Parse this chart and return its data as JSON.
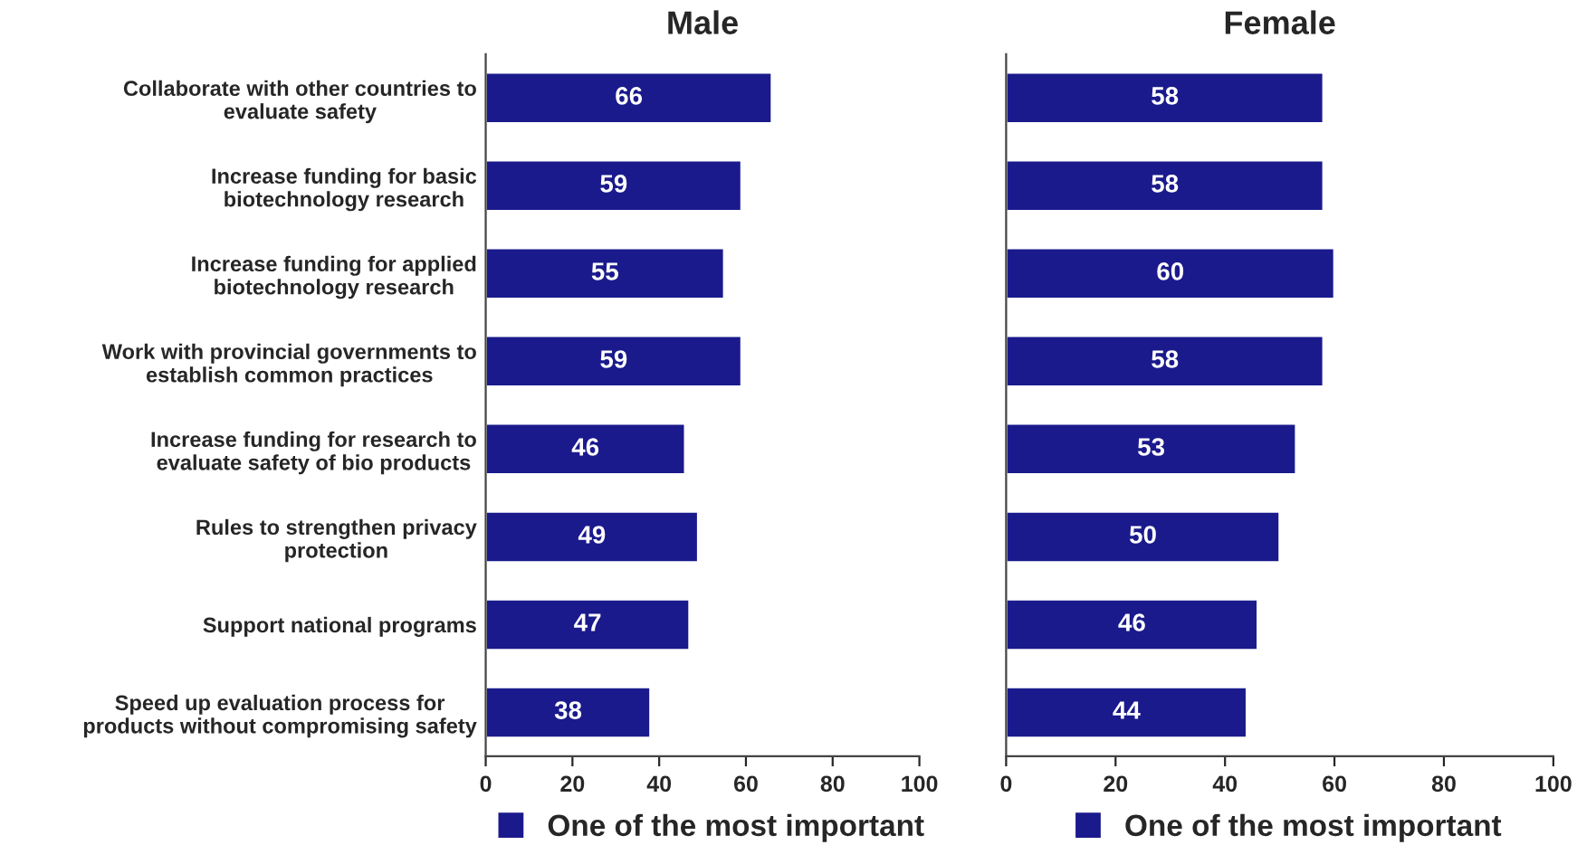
{
  "chart_data": [
    {
      "type": "bar",
      "orientation": "horizontal",
      "title": "Male",
      "categories": [
        "Collaborate with other countries to evaluate safety",
        "Increase funding for basic biotechnology research",
        "Increase funding for applied biotechnology research",
        "Work with provincial governments to establish common practices",
        "Increase funding for research to evaluate safety of bio products",
        "Rules to strengthen privacy protection",
        "Support national programs",
        "Speed up evaluation process for products without compromising safety"
      ],
      "series": [
        {
          "name": "One of the most important",
          "color": "#1a1a8c",
          "values": [
            66,
            59,
            55,
            59,
            46,
            49,
            47,
            38
          ]
        }
      ],
      "xlim": [
        0,
        100
      ],
      "xticks": [
        0,
        20,
        40,
        60,
        80,
        100
      ],
      "data_labels": true,
      "legend": "bottom",
      "grid": false
    },
    {
      "type": "bar",
      "orientation": "horizontal",
      "title": "Female",
      "categories": [
        null,
        null,
        null,
        null,
        null,
        null,
        null,
        null
      ],
      "series": [
        {
          "name": "One of the most important",
          "color": "#1a1a8c",
          "values": [
            58,
            58,
            60,
            58,
            53,
            50,
            46,
            44
          ]
        }
      ],
      "xlim": [
        0,
        100
      ],
      "xticks": [
        0,
        20,
        40,
        60,
        80,
        100
      ],
      "data_labels": true,
      "legend": "bottom",
      "grid": false
    }
  ]
}
